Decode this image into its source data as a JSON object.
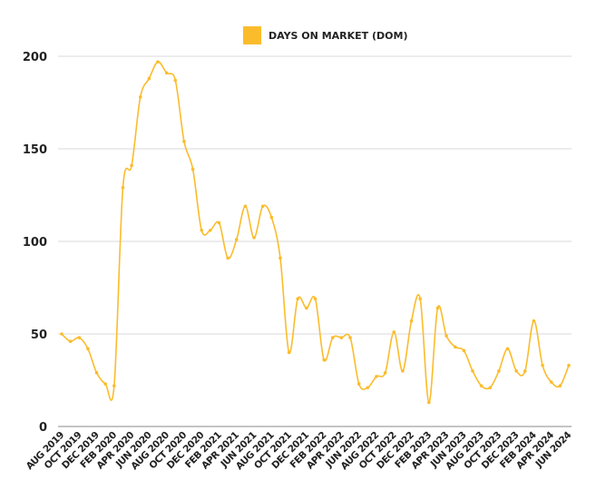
{
  "chart_data": {
    "type": "line",
    "title": "",
    "xlabel": "",
    "ylabel": "",
    "legend": {
      "position": "top",
      "label": "DAYS ON MARKET (DOM)"
    },
    "grid": true,
    "ylim": [
      0,
      200
    ],
    "y_ticks": [
      "0",
      "50",
      "100",
      "150",
      "200"
    ],
    "series_color": "#FBBC2C",
    "grid_color": "#d9d9d9",
    "axis_color": "#888888",
    "x": [
      "AUG 2019",
      "SEP 2019",
      "OCT 2019",
      "NOV 2019",
      "DEC 2019",
      "JAN 2020",
      "FEB 2020",
      "MAR 2020",
      "APR 2020",
      "MAY 2020",
      "JUN 2020",
      "JUL 2020",
      "AUG 2020",
      "SEP 2020",
      "OCT 2020",
      "NOV 2020",
      "DEC 2020",
      "JAN 2021",
      "FEB 2021",
      "MAR 2021",
      "APR 2021",
      "MAY 2021",
      "JUN 2021",
      "JUL 2021",
      "AUG 2021",
      "SEP 2021",
      "OCT 2021",
      "NOV 2021",
      "DEC 2021",
      "JAN 2022",
      "FEB 2022",
      "MAR 2022",
      "APR 2022",
      "MAY 2022",
      "JUN 2022",
      "JUL 2022",
      "AUG 2022",
      "SEP 2022",
      "OCT 2022",
      "NOV 2022",
      "DEC 2022",
      "JAN 2023",
      "FEB 2023",
      "MAR 2023",
      "APR 2023",
      "MAY 2023",
      "JUN 2023",
      "JUL 2023",
      "AUG 2023",
      "SEP 2023",
      "OCT 2023",
      "NOV 2023",
      "DEC 2023",
      "JAN 2024",
      "FEB 2024",
      "MAR 2024",
      "APR 2024",
      "MAY 2024",
      "JUN 2024"
    ],
    "x_tick_labels": [
      "AUG 2019",
      "OCT 2019",
      "DEC 2019",
      "FEB 2020",
      "APR 2020",
      "JUN 2020",
      "AUG 2020",
      "OCT 2020",
      "DEC 2020",
      "FEB 2021",
      "APR 2021",
      "JUN 2021",
      "AUG 2021",
      "OCT 2021",
      "DEC 2021",
      "FEB 2022",
      "APR 2022",
      "JUN 2022",
      "AUG 2022",
      "OCT 2022",
      "DEC 2022",
      "FEB 2023",
      "APR 2023",
      "JUN 2023",
      "AUG 2023",
      "OCT 2023",
      "DEC 2023",
      "FEB 2024",
      "APR 2024",
      "JUN 2024"
    ],
    "series": [
      {
        "name": "DAYS ON MARKET (DOM)",
        "values": [
          50,
          46,
          48,
          42,
          29,
          23,
          22,
          129,
          141,
          178,
          188,
          197,
          191,
          187,
          154,
          139,
          106,
          106,
          110,
          91,
          101,
          119,
          102,
          119,
          113,
          91,
          40,
          69,
          64,
          69,
          36,
          48,
          48,
          48,
          23,
          21,
          27,
          29,
          51,
          30,
          57,
          69,
          13,
          64,
          49,
          43,
          41,
          30,
          22,
          21,
          30,
          42,
          30,
          30,
          57,
          33,
          24,
          22,
          33
        ]
      }
    ]
  }
}
